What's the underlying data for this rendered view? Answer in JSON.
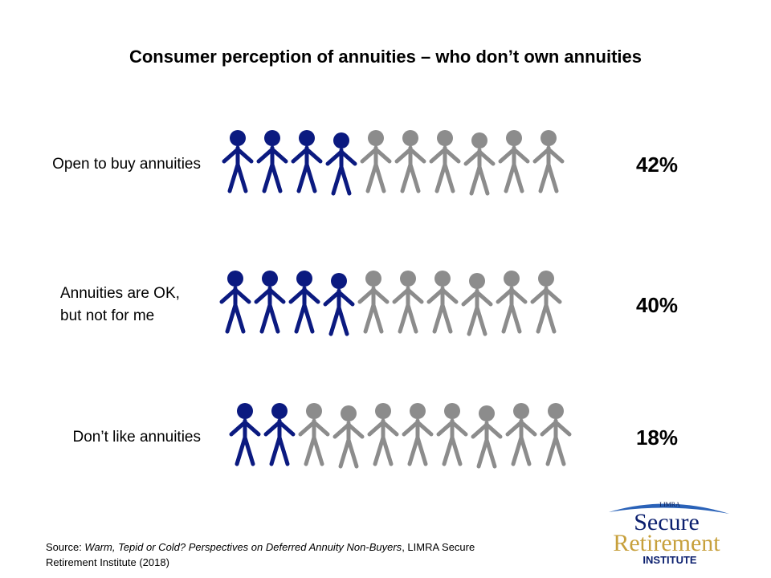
{
  "chart_data": {
    "type": "pictograph",
    "title": "Consumer perception of annuities – who don’t own annuities",
    "categories": [
      "Open to buy annuities",
      "Annuities are OK,\nbut not for me",
      "Don’t like annuities"
    ],
    "values": [
      42,
      40,
      18
    ],
    "value_labels": [
      "42%",
      "40%",
      "18%"
    ],
    "icon_count": 10,
    "filled_icons": [
      4,
      4,
      2
    ],
    "color": "#0b1a80",
    "empty_color": "#8c8c8c"
  },
  "source": {
    "prefix": "Source: ",
    "title": "Warm, Tepid or Cold? Perspectives on Deferred Annuity Non-Buyers",
    "suffix": ", LIMRA Secure Retirement Institute (2018)"
  },
  "logo": {
    "org": "LIMRA",
    "line1": "Secure",
    "line2": "Retirement",
    "line3": "INSTITUTE"
  }
}
